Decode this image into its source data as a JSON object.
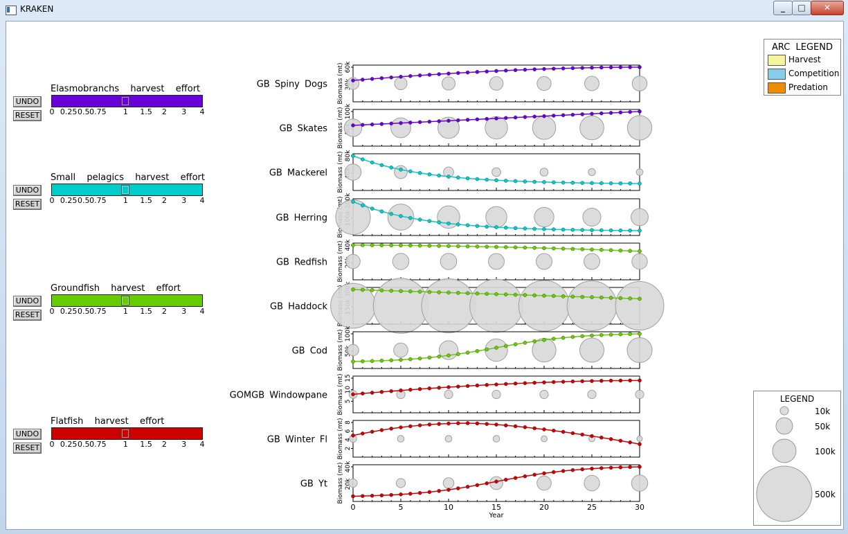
{
  "window": {
    "title": "KRAKEN"
  },
  "controls": {
    "undo_label": "UNDO",
    "reset_label": "RESET",
    "ticks": [
      "0",
      "0.25",
      "0.5",
      "0.75",
      "1",
      "1.5",
      "2",
      "3",
      "4"
    ],
    "sliders": [
      {
        "label": "Elasmobranchs  harvest  effort",
        "color": "#6a00d8",
        "value": "1"
      },
      {
        "label": "Small  pelagics  harvest  effort",
        "color": "#00cccc",
        "value": "1"
      },
      {
        "label": "Groundfish  harvest  effort",
        "color": "#66cc00",
        "value": "1"
      },
      {
        "label": "Flatfish  harvest  effort",
        "color": "#cc0000",
        "value": "1"
      }
    ]
  },
  "arc_legend": {
    "title": "ARC  LEGEND",
    "items": [
      {
        "label": "Harvest",
        "color": "#f7f59c"
      },
      {
        "label": "Competition",
        "color": "#87cde6"
      },
      {
        "label": "Predation",
        "color": "#f08c00"
      }
    ]
  },
  "size_legend": {
    "title": "LEGEND",
    "items": [
      "10k",
      "50k",
      "100k",
      "500k"
    ]
  },
  "chart_data": {
    "type": "line",
    "xlabel": "Year",
    "xlim": [
      0,
      30
    ],
    "x_ticks": [
      "0",
      "5",
      "10",
      "15",
      "20",
      "25",
      "30"
    ],
    "ylabel": "Biomass  (mt)",
    "circle_years": [
      0,
      5,
      10,
      15,
      20,
      25,
      30
    ],
    "panels": [
      {
        "name": "GB  Spiny  Dogs",
        "color": "#6a00d8",
        "ylim": [
          0,
          60000
        ],
        "y_ticks": [
          "30k",
          "60k"
        ],
        "y_tick_vals": [
          30000,
          60000
        ],
        "start": 37000,
        "end": 60000,
        "shape": "concave",
        "circles": [
          20000,
          22000,
          25000,
          27000,
          29000,
          31000,
          33000
        ]
      },
      {
        "name": "GB  Skates",
        "color": "#6a00d8",
        "ylim": [
          0,
          100000
        ],
        "y_ticks": [
          "50k",
          "100k"
        ],
        "y_tick_vals": [
          50000,
          100000
        ],
        "start": 60000,
        "end": 100000,
        "shape": "linear",
        "circles": [
          48000,
          62000,
          72000,
          80000,
          86000,
          92000,
          96000
        ]
      },
      {
        "name": "GB  Mackerel",
        "color": "#00cccc",
        "ylim": [
          0,
          80000
        ],
        "y_ticks": [
          "40k",
          "80k"
        ],
        "y_tick_vals": [
          40000,
          80000
        ],
        "start": 80000,
        "end": 16000,
        "shape": "decay",
        "circles": [
          40000,
          24000,
          14000,
          10000,
          8000,
          6000,
          5000
        ]
      },
      {
        "name": "GB  Herring",
        "color": "#00cccc",
        "ylim": [
          0,
          200000
        ],
        "y_ticks": [
          "100k",
          "200k"
        ],
        "y_tick_vals": [
          100000,
          200000
        ],
        "start": 195000,
        "end": 28000,
        "shape": "decay",
        "circles": [
          200000,
          110000,
          80000,
          70000,
          60000,
          50000,
          45000
        ]
      },
      {
        "name": "GB  Redfish",
        "color": "#66cc00",
        "ylim": [
          0,
          40000
        ],
        "y_ticks": [
          "20k",
          "40k"
        ],
        "y_tick_vals": [
          20000,
          40000
        ],
        "start": 40000,
        "end": 33000,
        "shape": "convex",
        "circles": [
          30000,
          40000,
          40000,
          38000,
          38000,
          38000,
          36000
        ]
      },
      {
        "name": "GB  Haddock",
        "color": "#66cc00",
        "ylim": [
          0,
          300000
        ],
        "y_ticks": [
          "150k",
          "300k"
        ],
        "y_tick_vals": [
          150000,
          300000
        ],
        "start": 300000,
        "end": 220000,
        "shape": "linear",
        "circles": [
          340000,
          520000,
          500000,
          480000,
          440000,
          420000,
          400000
        ]
      },
      {
        "name": "GB  Cod",
        "color": "#66cc00",
        "ylim": [
          0,
          100000
        ],
        "y_ticks": [
          "50k",
          "100k"
        ],
        "y_tick_vals": [
          50000,
          100000
        ],
        "start": 20000,
        "end": 100000,
        "shape": "sigmoid",
        "circles": [
          18000,
          30000,
          55000,
          80000,
          90000,
          94000,
          100000
        ]
      },
      {
        "name": "GOMGB  Windowpane",
        "color": "#cc0000",
        "ylim": [
          0,
          15000
        ],
        "y_ticks": [
          "5",
          "10",
          "15"
        ],
        "y_tick_vals": [
          5000,
          10000,
          15000
        ],
        "start": 8000,
        "end": 14000,
        "shape": "concave",
        "circles": [
          8000,
          9000,
          9000,
          9000,
          9000,
          9000,
          9000
        ]
      },
      {
        "name": "GB  Winter  Fl",
        "color": "#cc0000",
        "ylim": [
          0,
          8000
        ],
        "y_ticks": [
          "2",
          "4",
          "6",
          "8"
        ],
        "y_tick_vals": [
          2000,
          4000,
          6000,
          8000
        ],
        "start": 5000,
        "end": 3000,
        "shape": "hump",
        "circles": [
          6000,
          5000,
          5000,
          5000,
          4000,
          4000,
          3000
        ]
      },
      {
        "name": "GB  Yt",
        "color": "#cc0000",
        "ylim": [
          0,
          40000
        ],
        "y_ticks": [
          "20k",
          "40k"
        ],
        "y_tick_vals": [
          20000,
          40000
        ],
        "start": 6000,
        "end": 40000,
        "shape": "sigmoid",
        "circles": [
          9000,
          11000,
          16000,
          24000,
          30000,
          36000,
          40000
        ]
      }
    ]
  }
}
